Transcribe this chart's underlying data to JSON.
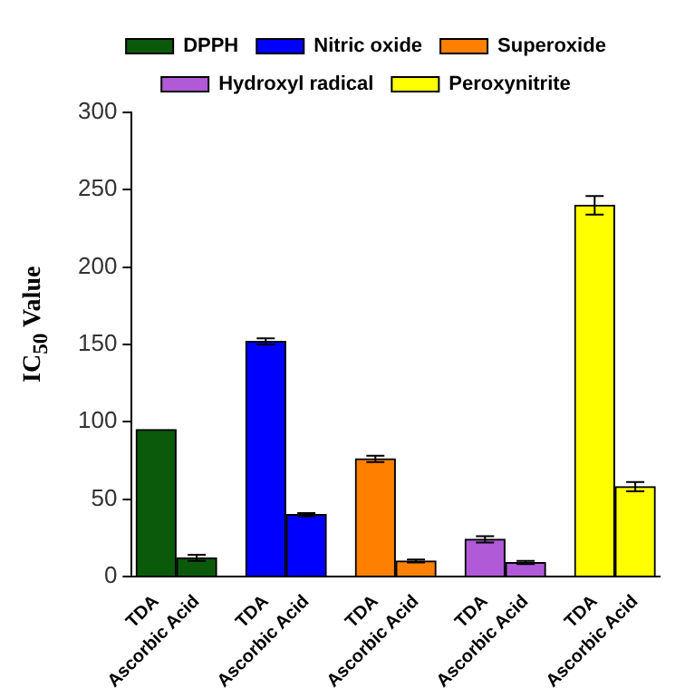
{
  "chart_data": {
    "type": "bar",
    "ylabel": "IC$_{50}$ Value",
    "categories": [
      "TDA",
      "Ascorbic Acid",
      "TDA",
      "Ascorbic Acid",
      "TDA",
      "Ascorbic Acid",
      "TDA",
      "Ascorbic Acid",
      "TDA",
      "Ascorbic Acid"
    ],
    "series": [
      {
        "name": "DPPH",
        "color": "#0b5a0b",
        "values": [
          95,
          12,
          null,
          null,
          null,
          null,
          null,
          null,
          null,
          null
        ],
        "errors": [
          null,
          2,
          null,
          null,
          null,
          null,
          null,
          null,
          null,
          null
        ]
      },
      {
        "name": "Nitric oxide",
        "color": "#0000ff",
        "values": [
          null,
          null,
          152,
          40,
          null,
          null,
          null,
          null,
          null,
          null
        ],
        "errors": [
          null,
          null,
          2,
          1,
          null,
          null,
          null,
          null,
          null,
          null
        ]
      },
      {
        "name": "Superoxide",
        "color": "#ff8000",
        "values": [
          null,
          null,
          null,
          null,
          76,
          10,
          null,
          null,
          null,
          null
        ],
        "errors": [
          null,
          null,
          null,
          null,
          2,
          1,
          null,
          null,
          null,
          null
        ]
      },
      {
        "name": "Hydroxyl radical",
        "color": "#b05ad8",
        "values": [
          null,
          null,
          null,
          null,
          null,
          null,
          24,
          9,
          null,
          null
        ],
        "errors": [
          null,
          null,
          null,
          null,
          null,
          null,
          2,
          1,
          null,
          null
        ]
      },
      {
        "name": "Peroxynitrite",
        "color": "#ffff00",
        "values": [
          null,
          null,
          null,
          null,
          null,
          null,
          null,
          null,
          240,
          58
        ],
        "errors": [
          null,
          null,
          null,
          null,
          null,
          null,
          null,
          null,
          6,
          3
        ]
      }
    ],
    "ylim": [
      0,
      300
    ],
    "yticks": [
      0,
      50,
      100,
      150,
      200,
      250,
      300
    ],
    "grid": false,
    "legend": "top"
  }
}
